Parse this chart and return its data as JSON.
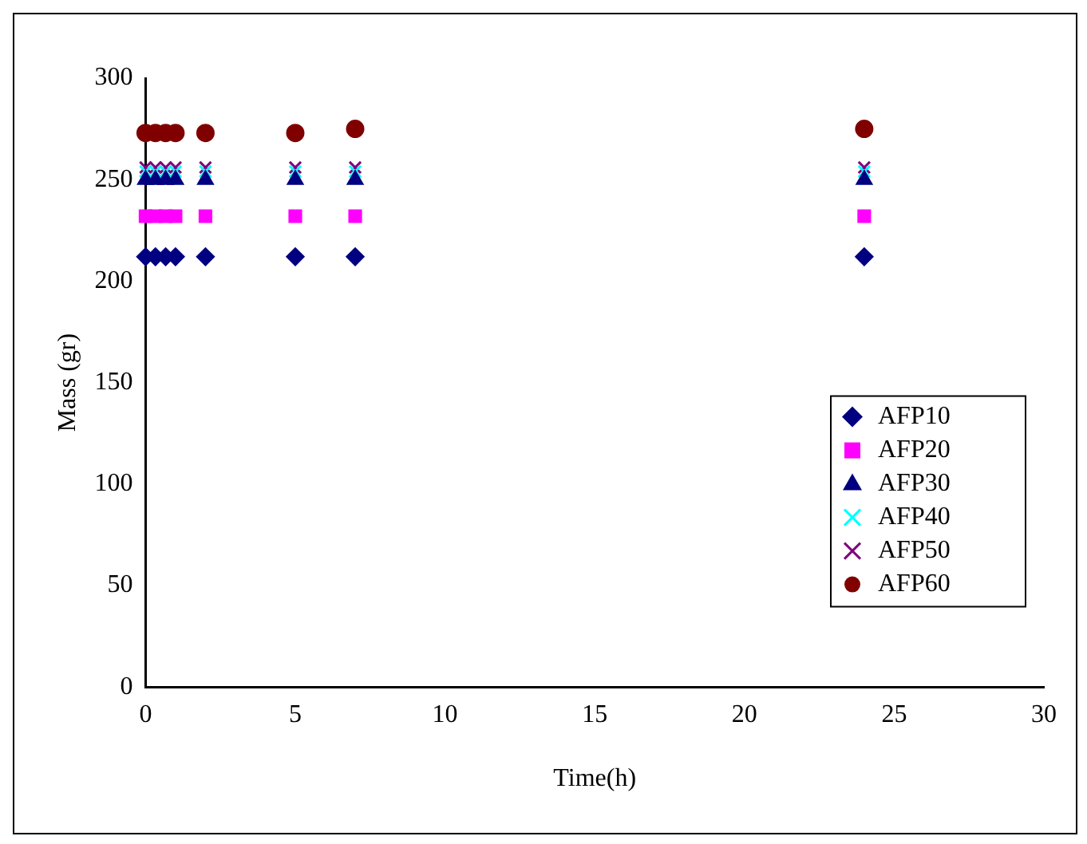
{
  "chart_data": {
    "type": "scatter",
    "xlabel": "Time(h)",
    "ylabel": "Mass (gr)",
    "xlim": [
      0,
      30
    ],
    "xticks": [
      0,
      5,
      10,
      15,
      20,
      25,
      30
    ],
    "ylim": [
      0,
      300
    ],
    "yticks": [
      0,
      50,
      100,
      150,
      200,
      250,
      300
    ],
    "grid": false,
    "legend": "right",
    "x": [
      0,
      0.33,
      0.67,
      1,
      2,
      5,
      7,
      24
    ],
    "series": [
      {
        "name": "AFP10",
        "color": "#000080",
        "marker": "diamond",
        "values": [
          212,
          212,
          212,
          212,
          212,
          212,
          212,
          212
        ]
      },
      {
        "name": "AFP20",
        "color": "#ff00ff",
        "marker": "square",
        "values": [
          232,
          232,
          232,
          232,
          232,
          232,
          232,
          232
        ]
      },
      {
        "name": "AFP30",
        "color": "#000080",
        "marker": "triangle",
        "values": [
          250,
          250,
          250,
          250,
          250,
          250,
          250,
          250
        ]
      },
      {
        "name": "AFP40",
        "color": "#00ffff",
        "marker": "cross",
        "values": [
          254,
          254,
          254,
          254,
          254,
          254,
          254,
          254
        ]
      },
      {
        "name": "AFP50",
        "color": "#800080",
        "marker": "cross",
        "values": [
          256,
          256,
          256,
          256,
          256,
          256,
          256,
          256
        ]
      },
      {
        "name": "AFP60",
        "color": "#800000",
        "marker": "circle",
        "values": [
          273,
          273,
          273,
          273,
          273,
          273,
          275,
          275
        ]
      }
    ]
  }
}
